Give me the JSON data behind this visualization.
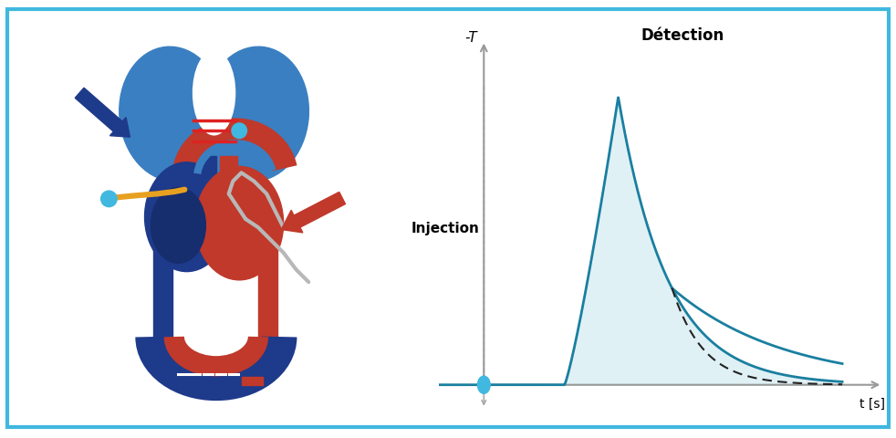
{
  "background_color": "#ffffff",
  "border_color": "#40b8e0",
  "border_linewidth": 3,
  "fig_width": 9.82,
  "fig_height": 4.8,
  "curve_color": "#1a7fa0",
  "curve_fill_color": "#cce8f0",
  "axis_color": "#999999",
  "dot_color": "#40b8e0",
  "injection_label": "Injection",
  "detection_label": "Détection",
  "y_axis_label": "-T",
  "x_axis_label": "t [s]",
  "injection_label_fontsize": 11,
  "detection_label_fontsize": 12,
  "axis_label_fontsize": 11,
  "t_label_fontsize": 10,
  "lung_color": "#3a7fc1",
  "heart_left_color": "#c0392b",
  "heart_right_color": "#1e3a8a",
  "vessel_blue_color": "#1e3a8a",
  "vessel_red_color": "#c0392b",
  "arrow_blue_color": "#1e3a8a",
  "arrow_red_color": "#c0392b",
  "catheter_color": "#b8b8b8",
  "orange_line_color": "#e8a020",
  "stripe_color": "#dd2222",
  "stripe_blue_color": "#3a7fc1",
  "dark_heart_color": "#162d6e"
}
